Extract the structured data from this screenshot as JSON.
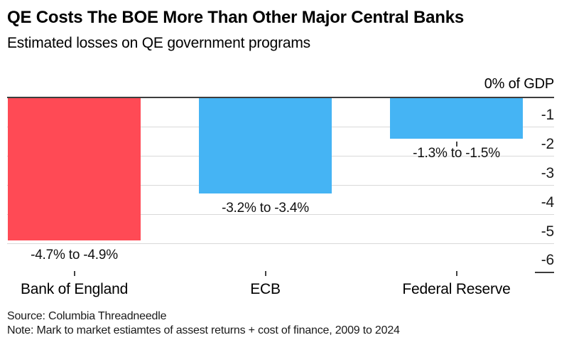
{
  "header": {
    "title": "QE Costs The BOE More Than Other Major Central Banks",
    "subtitle": "Estimated losses on QE government programs"
  },
  "chart_data": {
    "type": "bar",
    "orientation": "vertical",
    "title": "QE Costs The BOE More Than Other Major Central Banks",
    "subtitle": "Estimated losses on QE government programs",
    "categories": [
      "Bank of England",
      "ECB",
      "Federal Reserve"
    ],
    "series": [
      {
        "name": "Estimated losses on QE government programs (% of GDP)",
        "values": [
          -4.9,
          -3.3,
          -1.4
        ],
        "ranges": [
          [
            -4.7,
            -4.9
          ],
          [
            -3.2,
            -3.4
          ],
          [
            -1.3,
            -1.5
          ]
        ],
        "value_labels": [
          "-4.7% to -4.9%",
          "-3.2% to -3.4%",
          "-1.3% to -1.5%"
        ]
      }
    ],
    "bar_colors": [
      "#ff4a55",
      "#45b4f4",
      "#45b4f4"
    ],
    "ylabel_top": "0% of GDP",
    "yticks": [
      -1,
      -2,
      -3,
      -4,
      -5,
      -6
    ],
    "ylim": [
      -6,
      0
    ],
    "grid": "horizontal",
    "axis_side": "right",
    "legend": "none"
  },
  "footer": {
    "source": "Source: Columbia Threadneedle",
    "note": "Note: Mark to market estiamtes of assest returns + cost of finance, 2009 to 2024"
  },
  "colors": {
    "boe_bar": "#ff4a55",
    "other_bar": "#45b4f4",
    "zero_axis": "#3d3d3d",
    "gridline": "#d9d9d9",
    "text": "#000000"
  }
}
